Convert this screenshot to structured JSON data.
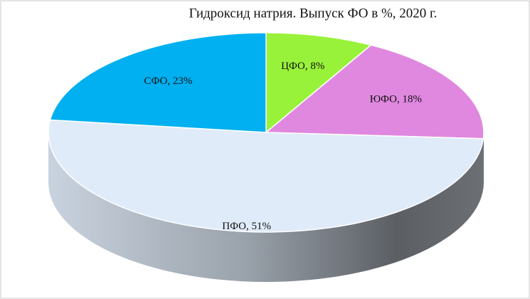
{
  "chart_data": {
    "type": "pie",
    "title": "Гидроксид натрия. Выпуск ФО в %,  2020 г.",
    "values": [
      8,
      18,
      51,
      23
    ],
    "value_labels": [
      "ЦФО, 8%",
      "ЮФО, 18%",
      "ПФО, 51%",
      "СФО, 23%"
    ],
    "colors": [
      "#99f23a",
      "#e088e0",
      "#dfebf8",
      "#00b0f0"
    ]
  }
}
